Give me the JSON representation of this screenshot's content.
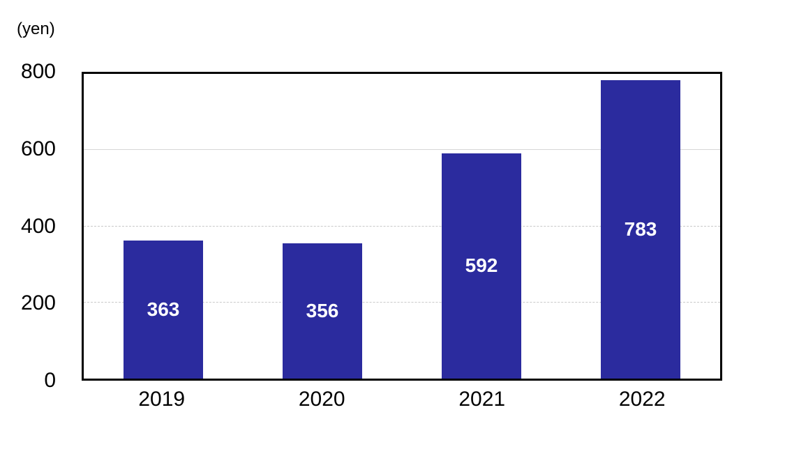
{
  "chart": {
    "unit_label": "(yen)"
  },
  "chart_data": {
    "type": "bar",
    "title": "",
    "xlabel": "",
    "ylabel": "(yen)",
    "categories": [
      "2019",
      "2020",
      "2021",
      "2022"
    ],
    "values": [
      363,
      356,
      592,
      783
    ],
    "ylim": [
      0,
      800
    ],
    "yticks": [
      0,
      200,
      400,
      600,
      800
    ],
    "legend": "none",
    "grid": "horizontal",
    "gridline_styles": {
      "200": "dashed",
      "400": "dashed",
      "600": "solid"
    },
    "bar_color": "#2b2b9e",
    "value_label_color": "#ffffff",
    "axis_frame_color": "#000000"
  }
}
